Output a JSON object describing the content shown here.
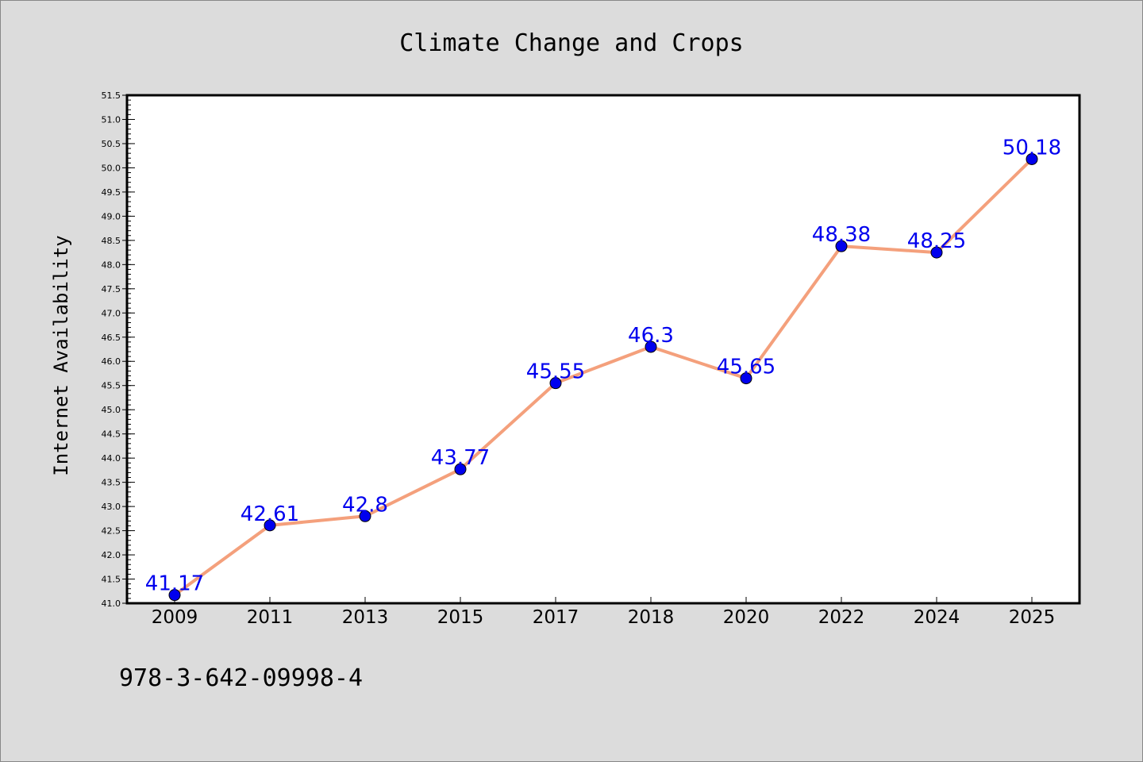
{
  "chart_data": {
    "type": "line",
    "title": "Climate Change and Crops",
    "xlabel": "",
    "ylabel": "Internet Availability",
    "categories": [
      "2009",
      "2011",
      "2013",
      "2015",
      "2017",
      "2018",
      "2020",
      "2022",
      "2024",
      "2025"
    ],
    "series": [
      {
        "values": [
          41.17,
          42.61,
          42.8,
          43.77,
          45.55,
          46.3,
          45.65,
          48.38,
          48.25,
          50.18
        ],
        "data_labels": [
          "41.17",
          "42.61",
          "42.8",
          "43.77",
          "45.55",
          "46.3",
          "45.65",
          "48.38",
          "48.25",
          "50.18"
        ],
        "line_color": "#f4a07c",
        "marker_color": "#0000ee"
      }
    ],
    "ylim": [
      41.0,
      51.5
    ],
    "yticks": [
      "41.0",
      "41.5",
      "42.0",
      "42.5",
      "43.0",
      "43.5",
      "44.0",
      "44.5",
      "45.0",
      "45.5",
      "46.0",
      "46.5",
      "47.0",
      "47.5",
      "48.0",
      "48.5",
      "49.0",
      "49.5",
      "50.0",
      "50.5",
      "51.0",
      "51.5"
    ],
    "grid": false,
    "legend": "none",
    "label_color": "#0000ee"
  },
  "footer_text": "978-3-642-09998-4",
  "colors": {
    "background": "#dcdcdc",
    "plot_background": "#ffffff"
  }
}
